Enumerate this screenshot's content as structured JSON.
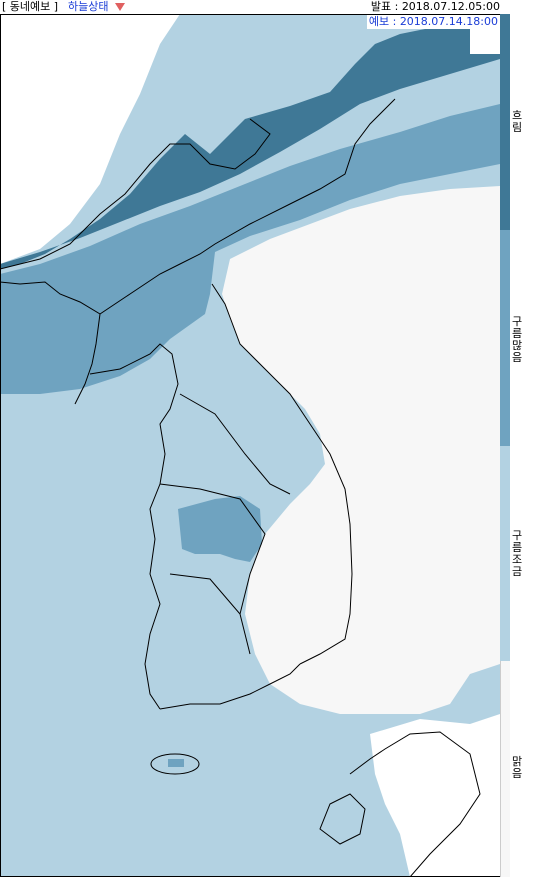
{
  "header": {
    "title_open": "[",
    "title": " 동네예보 ",
    "title_close": "]",
    "product": "하늘상태",
    "dropdown_icon": "triangle-down-icon",
    "issue_label": "발표 : ",
    "issue_time": "2018.07.12.05:00",
    "valid_label": "예보 : ",
    "valid_time": "2018.07.14.18:00"
  },
  "legend": {
    "items": [
      {
        "label": "흐림",
        "color": "#3f7896"
      },
      {
        "label": "구름많음",
        "color": "#6fa3c0"
      },
      {
        "label": "구름조금",
        "color": "#b3d2e2"
      },
      {
        "label": "맑음",
        "color": "#f7f7f7"
      }
    ]
  },
  "colors": {
    "overcast": "#3f7896",
    "mostly_cloudy": "#6fa3c0",
    "partly_cloudy": "#b3d2e2",
    "clear": "#f7f7f7",
    "outside": "#ffffff",
    "boundary": "#000000",
    "product_text": "#1a3cd6",
    "dropdown": "#e06060"
  }
}
